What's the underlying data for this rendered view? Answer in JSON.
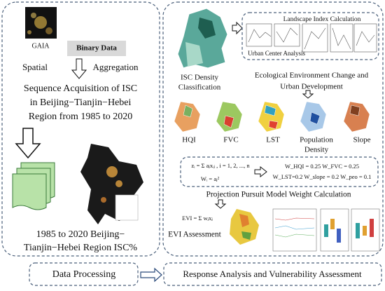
{
  "left_panel": {
    "gaia_label": "GAIA",
    "binary_data": "Binary Data",
    "spatial": "Spatial",
    "aggregation": "Aggregation",
    "sequence_title": [
      "Sequence Acquisition of ISC",
      "in Beijing−Tianjin−Hebei",
      "Region from 1985 to 2020"
    ],
    "result_title": [
      "1985 to 2020 Beijing−",
      "Tianjin−Hebei Region ISC%"
    ]
  },
  "right_panel": {
    "isc_density": [
      "ISC Density",
      "Classification"
    ],
    "landscape_index": "Landscape Index Calculation",
    "urban_center": "Urban Center Analysis",
    "eco_change": [
      "Ecological Environment Change and",
      "Urban Development"
    ],
    "factors": [
      "HQI",
      "FVC",
      "LST",
      "Population",
      "Density",
      "Slope"
    ],
    "formula": [
      "zᵢ = Σ aⱼxᵢⱼ , i = 1, 2, ..., n",
      "Wᵢ = aⱼ²"
    ],
    "weights": [
      "W_HQI = 0.25  W_FVC = 0.25",
      "W_LST=0.2  W_slope = 0.2  W_peo = 0.1"
    ],
    "projection": "Projection Pursuit Model Weight Calculation",
    "evi_formula": "EVI = Σ wⱼxⱼ",
    "evi_assessment": "EVI Assessment"
  },
  "footer": {
    "left": "Data Processing",
    "right": "Response Analysis and Vulnerability Assessment"
  }
}
